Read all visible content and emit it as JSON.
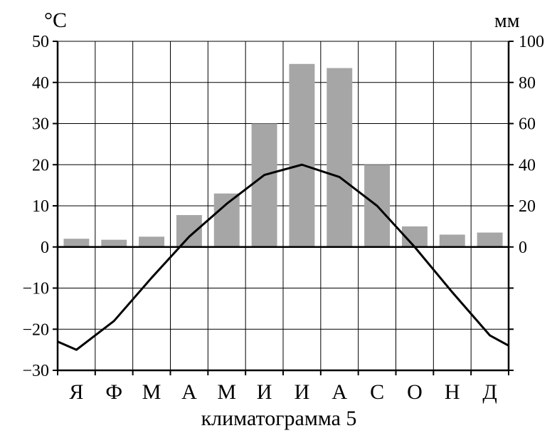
{
  "chart_data": {
    "type": "bar+line",
    "title": "климатограмма 5",
    "categories": [
      "Я",
      "Ф",
      "М",
      "А",
      "М",
      "И",
      "И",
      "А",
      "С",
      "О",
      "Н",
      "Д"
    ],
    "left_axis": {
      "unit": "°C",
      "ylim": [
        -30,
        50
      ],
      "ticks": [
        50,
        40,
        30,
        20,
        10,
        0,
        -10,
        -20,
        -30
      ],
      "tick_labels": [
        "50",
        "40",
        "30",
        "20",
        "10",
        "0",
        "−10",
        "−20",
        "−30"
      ]
    },
    "right_axis": {
      "unit": "мм",
      "ylim": [
        0,
        100
      ],
      "ticks": [
        100,
        80,
        60,
        40,
        20,
        0
      ],
      "tick_labels": [
        "100",
        "80",
        "60",
        "40",
        "20",
        "0"
      ]
    },
    "precipitation_mm": [
      4,
      3.5,
      5,
      15.5,
      26,
      60,
      89,
      87,
      40,
      10,
      6,
      7
    ],
    "temperature_c": {
      "x": [
        0,
        0.5,
        1.5,
        2.5,
        3.5,
        4.5,
        5.5,
        6.5,
        7.5,
        8.5,
        9.5,
        10.5,
        11.5,
        12
      ],
      "y": [
        -23,
        -25,
        -18,
        -7.5,
        2.5,
        10.5,
        17.5,
        20,
        17,
        10,
        0,
        -11,
        -21.5,
        -24
      ]
    },
    "colors": {
      "bars": "#a6a6a6",
      "line": "#000000",
      "grid": "#000000"
    }
  }
}
